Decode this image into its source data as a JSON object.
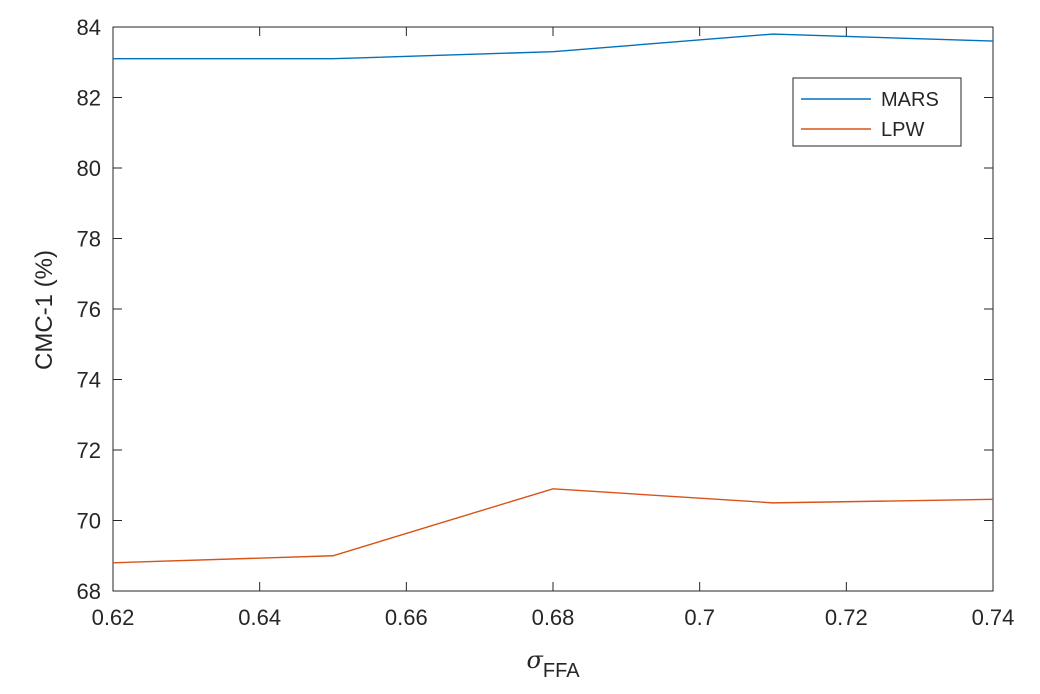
{
  "chart_data": {
    "type": "line",
    "x": [
      0.62,
      0.65,
      0.68,
      0.71,
      0.74
    ],
    "series": [
      {
        "name": "MARS",
        "color": "#0072BD",
        "values": [
          83.1,
          83.1,
          83.3,
          83.8,
          83.6
        ]
      },
      {
        "name": "LPW",
        "color": "#D95319",
        "values": [
          68.8,
          69.0,
          70.9,
          70.5,
          70.6
        ]
      }
    ],
    "xlabel": "σ",
    "xlabel_subscript": "FFA",
    "ylabel": "CMC-1 (%)",
    "xlim": [
      0.62,
      0.74
    ],
    "ylim": [
      68,
      84
    ],
    "xticks": [
      0.62,
      0.64,
      0.66,
      0.68,
      0.7,
      0.72,
      0.74
    ],
    "xtick_labels": [
      "0.62",
      "0.64",
      "0.66",
      "0.68",
      "0.7",
      "0.72",
      "0.74"
    ],
    "yticks": [
      68,
      70,
      72,
      74,
      76,
      78,
      80,
      82,
      84
    ],
    "ytick_labels": [
      "68",
      "70",
      "72",
      "74",
      "76",
      "78",
      "80",
      "82",
      "84"
    ],
    "grid": false,
    "legend_position": "top-right"
  }
}
